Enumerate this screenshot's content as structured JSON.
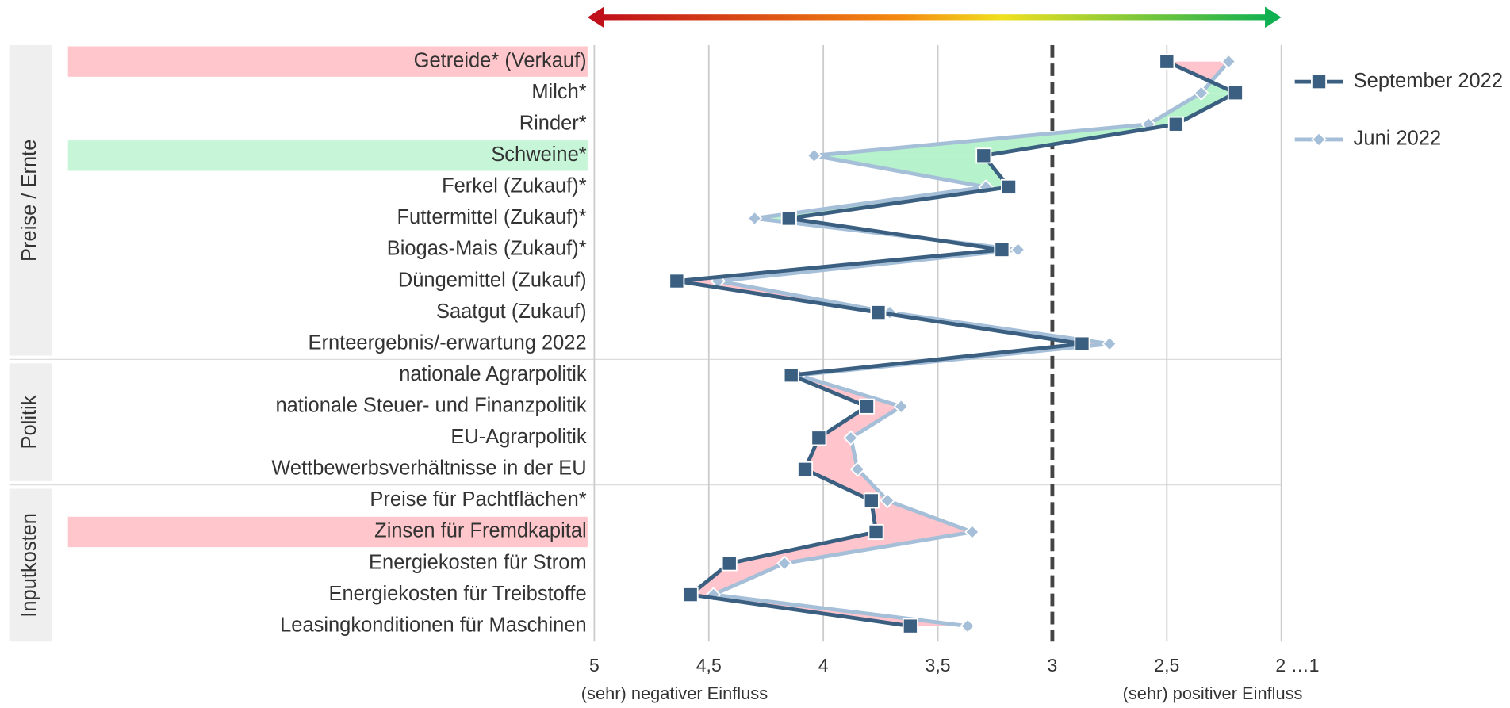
{
  "chart_data": {
    "type": "line",
    "categories": [
      "Getreide* (Verkauf)",
      "Milch*",
      "Rinder*",
      "Schweine*",
      "Ferkel (Zukauf)*",
      "Futtermittel (Zukauf)*",
      "Biogas-Mais (Zukauf)*",
      "Düngemittel (Zukauf)",
      "Saatgut (Zukauf)",
      "Ernteergebnis/-erwartung 2022",
      "nationale Agrarpolitik",
      "nationale Steuer- und Finanzpolitik",
      "EU-Agrarpolitik",
      "Wettbewerbsverhältnisse in der EU",
      "Preise für Pachtflächen*",
      "Zinsen für Fremdkapital",
      "Energiekosten für Strom",
      "Energiekosten für Treibstoffe",
      "Leasingkonditionen für Maschinen"
    ],
    "category_highlight": [
      "#ffc7cb",
      null,
      null,
      "#c6f5d8",
      null,
      null,
      null,
      null,
      null,
      null,
      null,
      null,
      null,
      null,
      null,
      "#ffc7cb",
      null,
      null,
      null
    ],
    "groups": [
      {
        "name": "Preise / Ernte",
        "count": 10
      },
      {
        "name": "Politik",
        "count": 4
      },
      {
        "name": "Inputkosten",
        "count": 5
      }
    ],
    "series": [
      {
        "name": "September 2022",
        "color": "#3a5f80",
        "marker": "square",
        "values": [
          2.5,
          2.2,
          2.46,
          3.3,
          3.19,
          4.15,
          3.22,
          4.64,
          3.76,
          2.87,
          4.14,
          3.81,
          4.02,
          4.08,
          3.79,
          3.77,
          4.41,
          4.58,
          3.62
        ]
      },
      {
        "name": "Juni 2022",
        "color": "#a6bfd8",
        "marker": "diamond",
        "values": [
          2.23,
          2.35,
          2.58,
          4.04,
          3.29,
          4.3,
          3.15,
          4.46,
          3.71,
          2.75,
          4.11,
          3.66,
          3.88,
          3.85,
          3.72,
          3.35,
          4.17,
          4.48,
          3.37
        ]
      }
    ],
    "shade_colors": {
      "worse": "#ffc4cc",
      "better": "#b6f2cc"
    },
    "xlim": [
      5,
      2
    ],
    "xticks": [
      5,
      {
        "value": 4.5,
        "label": "4,5"
      },
      4,
      {
        "value": 3.5,
        "label": "3,5"
      },
      3,
      {
        "value": 2.5,
        "label": "2,5"
      },
      {
        "value": 2,
        "label": "2 …1"
      }
    ],
    "reference_line": 3,
    "xlabel_left": "(sehr) negativer Einfluss",
    "xlabel_right": "(sehr) positiver Einfluss",
    "grid": true,
    "legend": "right"
  }
}
